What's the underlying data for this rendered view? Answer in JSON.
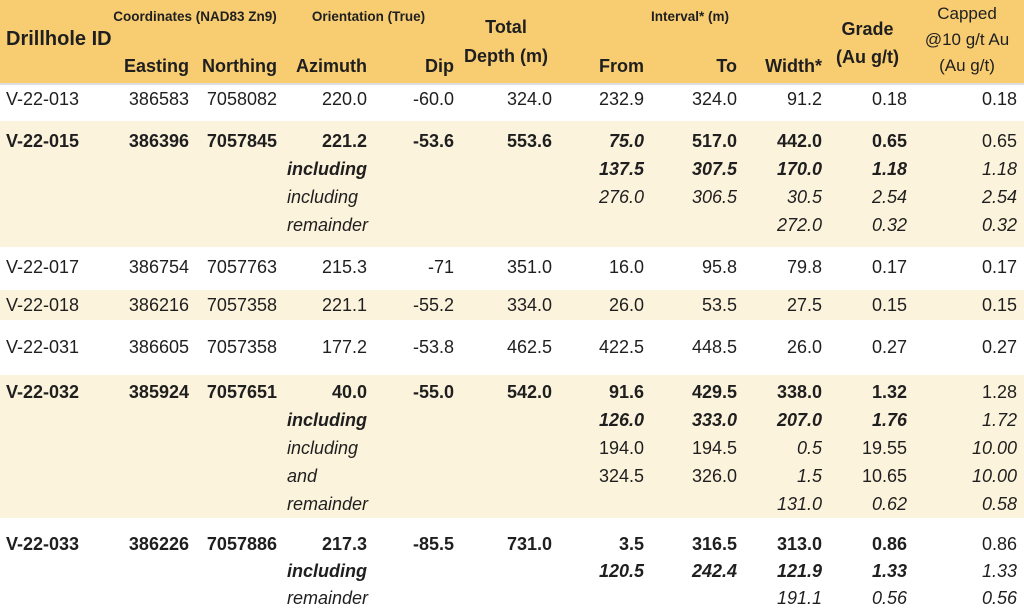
{
  "colors": {
    "header_bg": "#F8CD72",
    "stripe_bg": "#FCF3DC",
    "row_bg": "#FFFFFF",
    "text": "#1F1F1F"
  },
  "table": {
    "headers": {
      "drillhole": "Drillhole ID",
      "coordinates_group": "Coordinates (NAD83 Zn9)",
      "orientation_group": "Orientation (True)",
      "interval_group": "Interval* (m)",
      "total_depth_lines": [
        "Total",
        "Depth (m)"
      ],
      "grade_lines": [
        "Grade",
        "(Au g/t)"
      ],
      "capped_lines": [
        "Capped",
        "@10 g/t Au",
        "(Au g/t)"
      ],
      "easting": "Easting",
      "northing": "Northing",
      "azimuth": "Azimuth",
      "dip": "Dip",
      "from": "From",
      "to": "To",
      "width": "Width*"
    },
    "lines": [
      {
        "id": "V-22-013",
        "easting": "386583",
        "northing": "7058082",
        "azimuth": "220.0",
        "dip": "-60.0",
        "depth": "324.0",
        "from": "232.9",
        "to": "324.0",
        "width": "91.2",
        "grade": "0.18",
        "capped": "0.18"
      },
      {
        "id": "V-22-015",
        "easting": "386396",
        "northing": "7057845",
        "azimuth": "221.2",
        "dip": "-53.6",
        "depth": "553.6",
        "from": "75.0",
        "to": "517.0",
        "width": "442.0",
        "grade": "0.65",
        "capped": "0.65"
      },
      {
        "label": "including",
        "from": "137.5",
        "to": "307.5",
        "width": "170.0",
        "grade": "1.18",
        "capped": "1.18"
      },
      {
        "label": "including",
        "from": "276.0",
        "to": "306.5",
        "width": "30.5",
        "grade": "2.54",
        "capped": "2.54"
      },
      {
        "label": "remainder",
        "width": "272.0",
        "grade": "0.32",
        "capped": "0.32"
      },
      {
        "id": "V-22-017",
        "easting": "386754",
        "northing": "7057763",
        "azimuth": "215.3",
        "dip": "-71",
        "depth": "351.0",
        "from": "16.0",
        "to": "95.8",
        "width": "79.8",
        "grade": "0.17",
        "capped": "0.17"
      },
      {
        "id": "V-22-018",
        "easting": "386216",
        "northing": "7057358",
        "azimuth": "221.1",
        "dip": "-55.2",
        "depth": "334.0",
        "from": "26.0",
        "to": "53.5",
        "width": "27.5",
        "grade": "0.15",
        "capped": "0.15"
      },
      {
        "id": "V-22-031",
        "easting": "386605",
        "northing": "7057358",
        "azimuth": "177.2",
        "dip": "-53.8",
        "depth": "462.5",
        "from": "422.5",
        "to": "448.5",
        "width": "26.0",
        "grade": "0.27",
        "capped": "0.27"
      },
      {
        "id": "V-22-032",
        "easting": "385924",
        "northing": "7057651",
        "azimuth": "40.0",
        "dip": "-55.0",
        "depth": "542.0",
        "from": "91.6",
        "to": "429.5",
        "width": "338.0",
        "grade": "1.32",
        "capped": "1.28"
      },
      {
        "label": "including",
        "from": "126.0",
        "to": "333.0",
        "width": "207.0",
        "grade": "1.76",
        "capped": "1.72"
      },
      {
        "label": "including",
        "from": "194.0",
        "to": "194.5",
        "width": "0.5",
        "grade": "19.55",
        "capped": "10.00"
      },
      {
        "label": "and",
        "from": "324.5",
        "to": "326.0",
        "width": "1.5",
        "grade": "10.65",
        "capped": "10.00"
      },
      {
        "label": "remainder",
        "width": "131.0",
        "grade": "0.62",
        "capped": "0.58"
      },
      {
        "id": "V-22-033",
        "easting": "386226",
        "northing": "7057886",
        "azimuth": "217.3",
        "dip": "-85.5",
        "depth": "731.0",
        "from": "3.5",
        "to": "316.5",
        "width": "313.0",
        "grade": "0.86",
        "capped": "0.86"
      },
      {
        "label": "including",
        "from": "120.5",
        "to": "242.4",
        "width": "121.9",
        "grade": "1.33",
        "capped": "1.33"
      },
      {
        "label": "remainder",
        "width": "191.1",
        "grade": "0.56",
        "capped": "0.56"
      }
    ]
  }
}
